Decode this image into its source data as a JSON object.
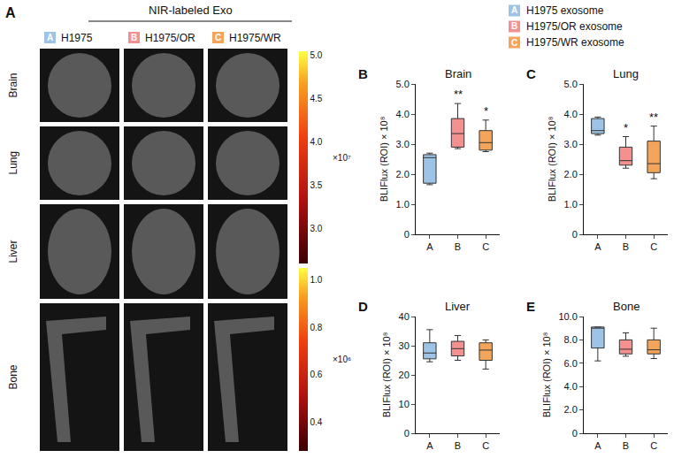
{
  "panel_a": {
    "letter": "A",
    "header": "NIR-labeled Exo",
    "rows": [
      "Brain",
      "Lung",
      "Liver",
      "Bone"
    ],
    "columns": [
      {
        "letter": "A",
        "label": "H1975"
      },
      {
        "letter": "B",
        "label": "H1975/OR"
      },
      {
        "letter": "C",
        "label": "H1975/WR"
      }
    ],
    "colorbars": [
      {
        "range": [
          2.6,
          5.05
        ],
        "ticks": [
          {
            "value": 5,
            "label": "5.0"
          },
          {
            "value": 4.5,
            "label": "4.5"
          },
          {
            "value": 4,
            "label": "4.0"
          },
          {
            "value": 3.5,
            "label": "3.5"
          },
          {
            "value": 3,
            "label": "3.0"
          }
        ],
        "multiplier": "×10⁷"
      },
      {
        "range": [
          0.28,
          1.05
        ],
        "ticks": [
          {
            "value": 1,
            "label": "1.0"
          },
          {
            "value": 0.8,
            "label": "0.8"
          },
          {
            "value": 0.6,
            "label": "0.6"
          },
          {
            "value": 0.4,
            "label": "0.4"
          }
        ],
        "multiplier": "×10⁶"
      }
    ]
  },
  "legend_items": [
    {
      "letter": "A",
      "name": "H1975 exosome",
      "color": "#9dc3e6"
    },
    {
      "letter": "B",
      "name": "H1975/OR exosome",
      "color": "#f4908e"
    },
    {
      "letter": "C",
      "name": "H1975/WR exosome",
      "color": "#f5a55a"
    }
  ],
  "chart_data": [
    {
      "type": "box",
      "panel": "B",
      "title": "Brain",
      "y_label": "BLIFlux (ROI) × 10⁸",
      "categories": [
        "A",
        "B",
        "C"
      ],
      "colors": [
        "#9dc3e6",
        "#f4908e",
        "#f5a55a"
      ],
      "min": [
        1.65,
        2.85,
        2.75
      ],
      "q1": [
        1.7,
        2.9,
        2.8
      ],
      "median": [
        2.55,
        3.35,
        3.05
      ],
      "q3": [
        2.65,
        3.85,
        3.45
      ],
      "max": [
        2.7,
        4.35,
        3.8
      ],
      "significance": [
        null,
        "**",
        "*"
      ],
      "ylim": [
        0,
        5
      ],
      "yticks": [
        0,
        {
          "value": 1,
          "label": "1.0"
        },
        {
          "value": 2,
          "label": "2.0"
        },
        {
          "value": 3,
          "label": "3.0"
        },
        {
          "value": 4,
          "label": "4.0"
        },
        {
          "value": 5,
          "label": "5.0"
        }
      ],
      "grid": false
    },
    {
      "type": "box",
      "panel": "C",
      "title": "Lung",
      "y_label": "BLIFlux (ROI) × 10⁸",
      "categories": [
        "A",
        "B",
        "C"
      ],
      "colors": [
        "#9dc3e6",
        "#f4908e",
        "#f5a55a"
      ],
      "min": [
        3.3,
        2.2,
        1.85
      ],
      "q1": [
        3.35,
        2.3,
        2.05
      ],
      "median": [
        3.45,
        2.45,
        2.35
      ],
      "q3": [
        3.85,
        2.9,
        3.1
      ],
      "max": [
        3.9,
        3.25,
        3.6
      ],
      "significance": [
        null,
        "*",
        "**"
      ],
      "ylim": [
        0,
        5
      ],
      "yticks": [
        0,
        {
          "value": 1,
          "label": "1.0"
        },
        {
          "value": 2,
          "label": "2.0"
        },
        {
          "value": 3,
          "label": "3.0"
        },
        {
          "value": 4,
          "label": "4.0"
        },
        {
          "value": 5,
          "label": "5.0"
        }
      ],
      "grid": false
    },
    {
      "type": "box",
      "panel": "D",
      "title": "Liver",
      "y_label": "BLIFlux (ROI) × 10⁸",
      "categories": [
        "A",
        "B",
        "C"
      ],
      "colors": [
        "#9dc3e6",
        "#f4908e",
        "#f5a55a"
      ],
      "min": [
        24.5,
        25,
        22
      ],
      "q1": [
        25.5,
        26.5,
        25
      ],
      "median": [
        27.5,
        29,
        28.5
      ],
      "q3": [
        31,
        31.5,
        31
      ],
      "max": [
        35.5,
        33.5,
        32
      ],
      "significance": [
        null,
        null,
        null
      ],
      "ylim": [
        0,
        40
      ],
      "yticks": [
        0,
        10,
        20,
        30,
        40
      ],
      "grid": false
    },
    {
      "type": "box",
      "panel": "E",
      "title": "Bone",
      "y_label": "BLIFlux (ROI) × 10⁸",
      "categories": [
        "A",
        "B",
        "C"
      ],
      "colors": [
        "#9dc3e6",
        "#f4908e",
        "#f5a55a"
      ],
      "min": [
        6.2,
        6.6,
        6.4
      ],
      "q1": [
        7.3,
        6.8,
        6.8
      ],
      "median": [
        9.0,
        7.2,
        7.15
      ],
      "q3": [
        9.1,
        8.0,
        8.0
      ],
      "max": [
        9.1,
        8.6,
        9.0
      ],
      "significance": [
        null,
        null,
        null
      ],
      "ylim": [
        0,
        10
      ],
      "yticks": [
        0,
        {
          "value": 2,
          "label": "2.0"
        },
        {
          "value": 4,
          "label": "4.0"
        },
        {
          "value": 6,
          "label": "6.0"
        },
        {
          "value": 8,
          "label": "8.0"
        },
        {
          "value": 10,
          "label": "10.0"
        }
      ],
      "grid": false
    }
  ]
}
